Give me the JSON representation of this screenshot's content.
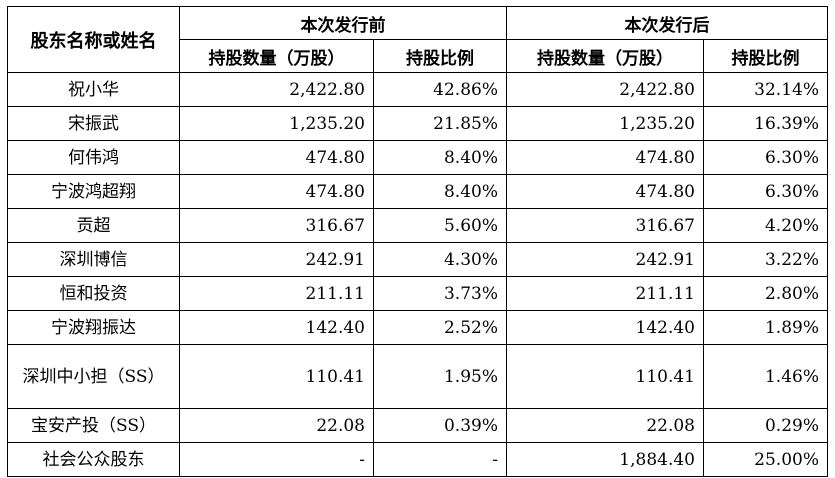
{
  "header": {
    "shareholder": "股东名称或姓名",
    "before_group": "本次发行前",
    "after_group": "本次发行后",
    "shares_col": "持股数量（万股）",
    "ratio_col": "持股比例"
  },
  "rows": [
    {
      "name": "祝小华",
      "before_shares": "2,422.80",
      "before_ratio": "42.86%",
      "after_shares": "2,422.80",
      "after_ratio": "32.14%"
    },
    {
      "name": "宋振武",
      "before_shares": "1,235.20",
      "before_ratio": "21.85%",
      "after_shares": "1,235.20",
      "after_ratio": "16.39%"
    },
    {
      "name": "何伟鸿",
      "before_shares": "474.80",
      "before_ratio": "8.40%",
      "after_shares": "474.80",
      "after_ratio": "6.30%"
    },
    {
      "name": "宁波鸿超翔",
      "before_shares": "474.80",
      "before_ratio": "8.40%",
      "after_shares": "474.80",
      "after_ratio": "6.30%"
    },
    {
      "name": "贡超",
      "before_shares": "316.67",
      "before_ratio": "5.60%",
      "after_shares": "316.67",
      "after_ratio": "4.20%"
    },
    {
      "name": "深圳博信",
      "before_shares": "242.91",
      "before_ratio": "4.30%",
      "after_shares": "242.91",
      "after_ratio": "3.22%"
    },
    {
      "name": "恒和投资",
      "before_shares": "211.11",
      "before_ratio": "3.73%",
      "after_shares": "211.11",
      "after_ratio": "2.80%"
    },
    {
      "name": "宁波翔振达",
      "before_shares": "142.40",
      "before_ratio": "2.52%",
      "after_shares": "142.40",
      "after_ratio": "1.89%"
    },
    {
      "name": "深圳中小担（SS）",
      "before_shares": "110.41",
      "before_ratio": "1.95%",
      "after_shares": "110.41",
      "after_ratio": "1.46%"
    },
    {
      "name": "宝安产投（SS）",
      "before_shares": "22.08",
      "before_ratio": "0.39%",
      "after_shares": "22.08",
      "after_ratio": "0.29%"
    },
    {
      "name": "社会公众股东",
      "before_shares": "-",
      "before_ratio": "-",
      "after_shares": "1,884.40",
      "after_ratio": "25.00%"
    }
  ]
}
